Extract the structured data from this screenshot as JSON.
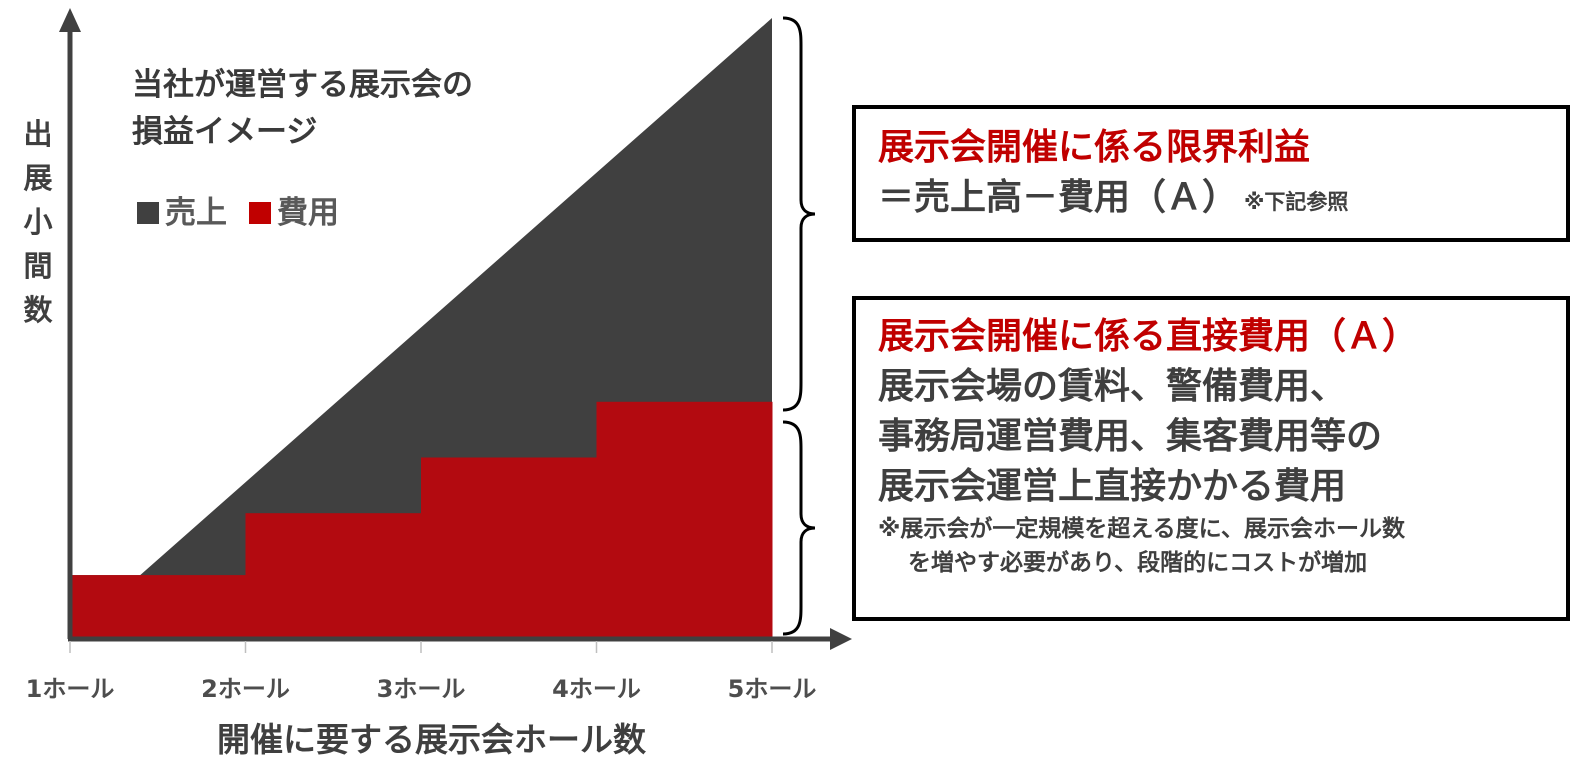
{
  "chart_data": {
    "type": "area",
    "title_lines": [
      "当社が運営する展示会の",
      "損益イメージ"
    ],
    "xlabel": "開催に要する展示会ホール数",
    "ylabel": "出展小間数",
    "categories": [
      "1ホール",
      "2ホール",
      "3ホール",
      "4ホール",
      "5ホール"
    ],
    "x": [
      1,
      2,
      3,
      4,
      5
    ],
    "xlim": [
      1,
      5
    ],
    "ylim": [
      0,
      10
    ],
    "grid": false,
    "legend_placement": "top-left",
    "series": [
      {
        "name": "売上",
        "kind": "linear",
        "color": "#404040",
        "points": [
          [
            1.4,
            1.0
          ],
          [
            5,
            10
          ]
        ]
      },
      {
        "name": "費用",
        "kind": "step",
        "color": "#b30a10",
        "steps": [
          {
            "from": 1,
            "to": 2,
            "value": 1.0
          },
          {
            "from": 2,
            "to": 3,
            "value": 2.0
          },
          {
            "from": 3,
            "to": 4,
            "value": 2.9
          },
          {
            "from": 4,
            "to": 5,
            "value": 3.8
          }
        ]
      }
    ]
  },
  "box_profit": {
    "heading": "展示会開催に係る限界利益",
    "formula": "＝売上高－費用（Ａ）",
    "formula_note": "※下記参照"
  },
  "box_cost": {
    "heading": "展示会開催に係る直接費用（Ａ）",
    "line1": "展示会場の賃料、警備費用、",
    "line2": "事務局運営費用、集客費用等の",
    "line3": "展示会運営上直接かかる費用",
    "note1": "※展示会が一定規模を超える度に、展示会ホール数",
    "note2": "を増やす必要があり、段階的にコストが増加"
  },
  "colors": {
    "axis": "#404040",
    "revenue": "#404040",
    "cost": "#b30a10",
    "heading_red": "#c00000",
    "box_border": "#000000"
  }
}
